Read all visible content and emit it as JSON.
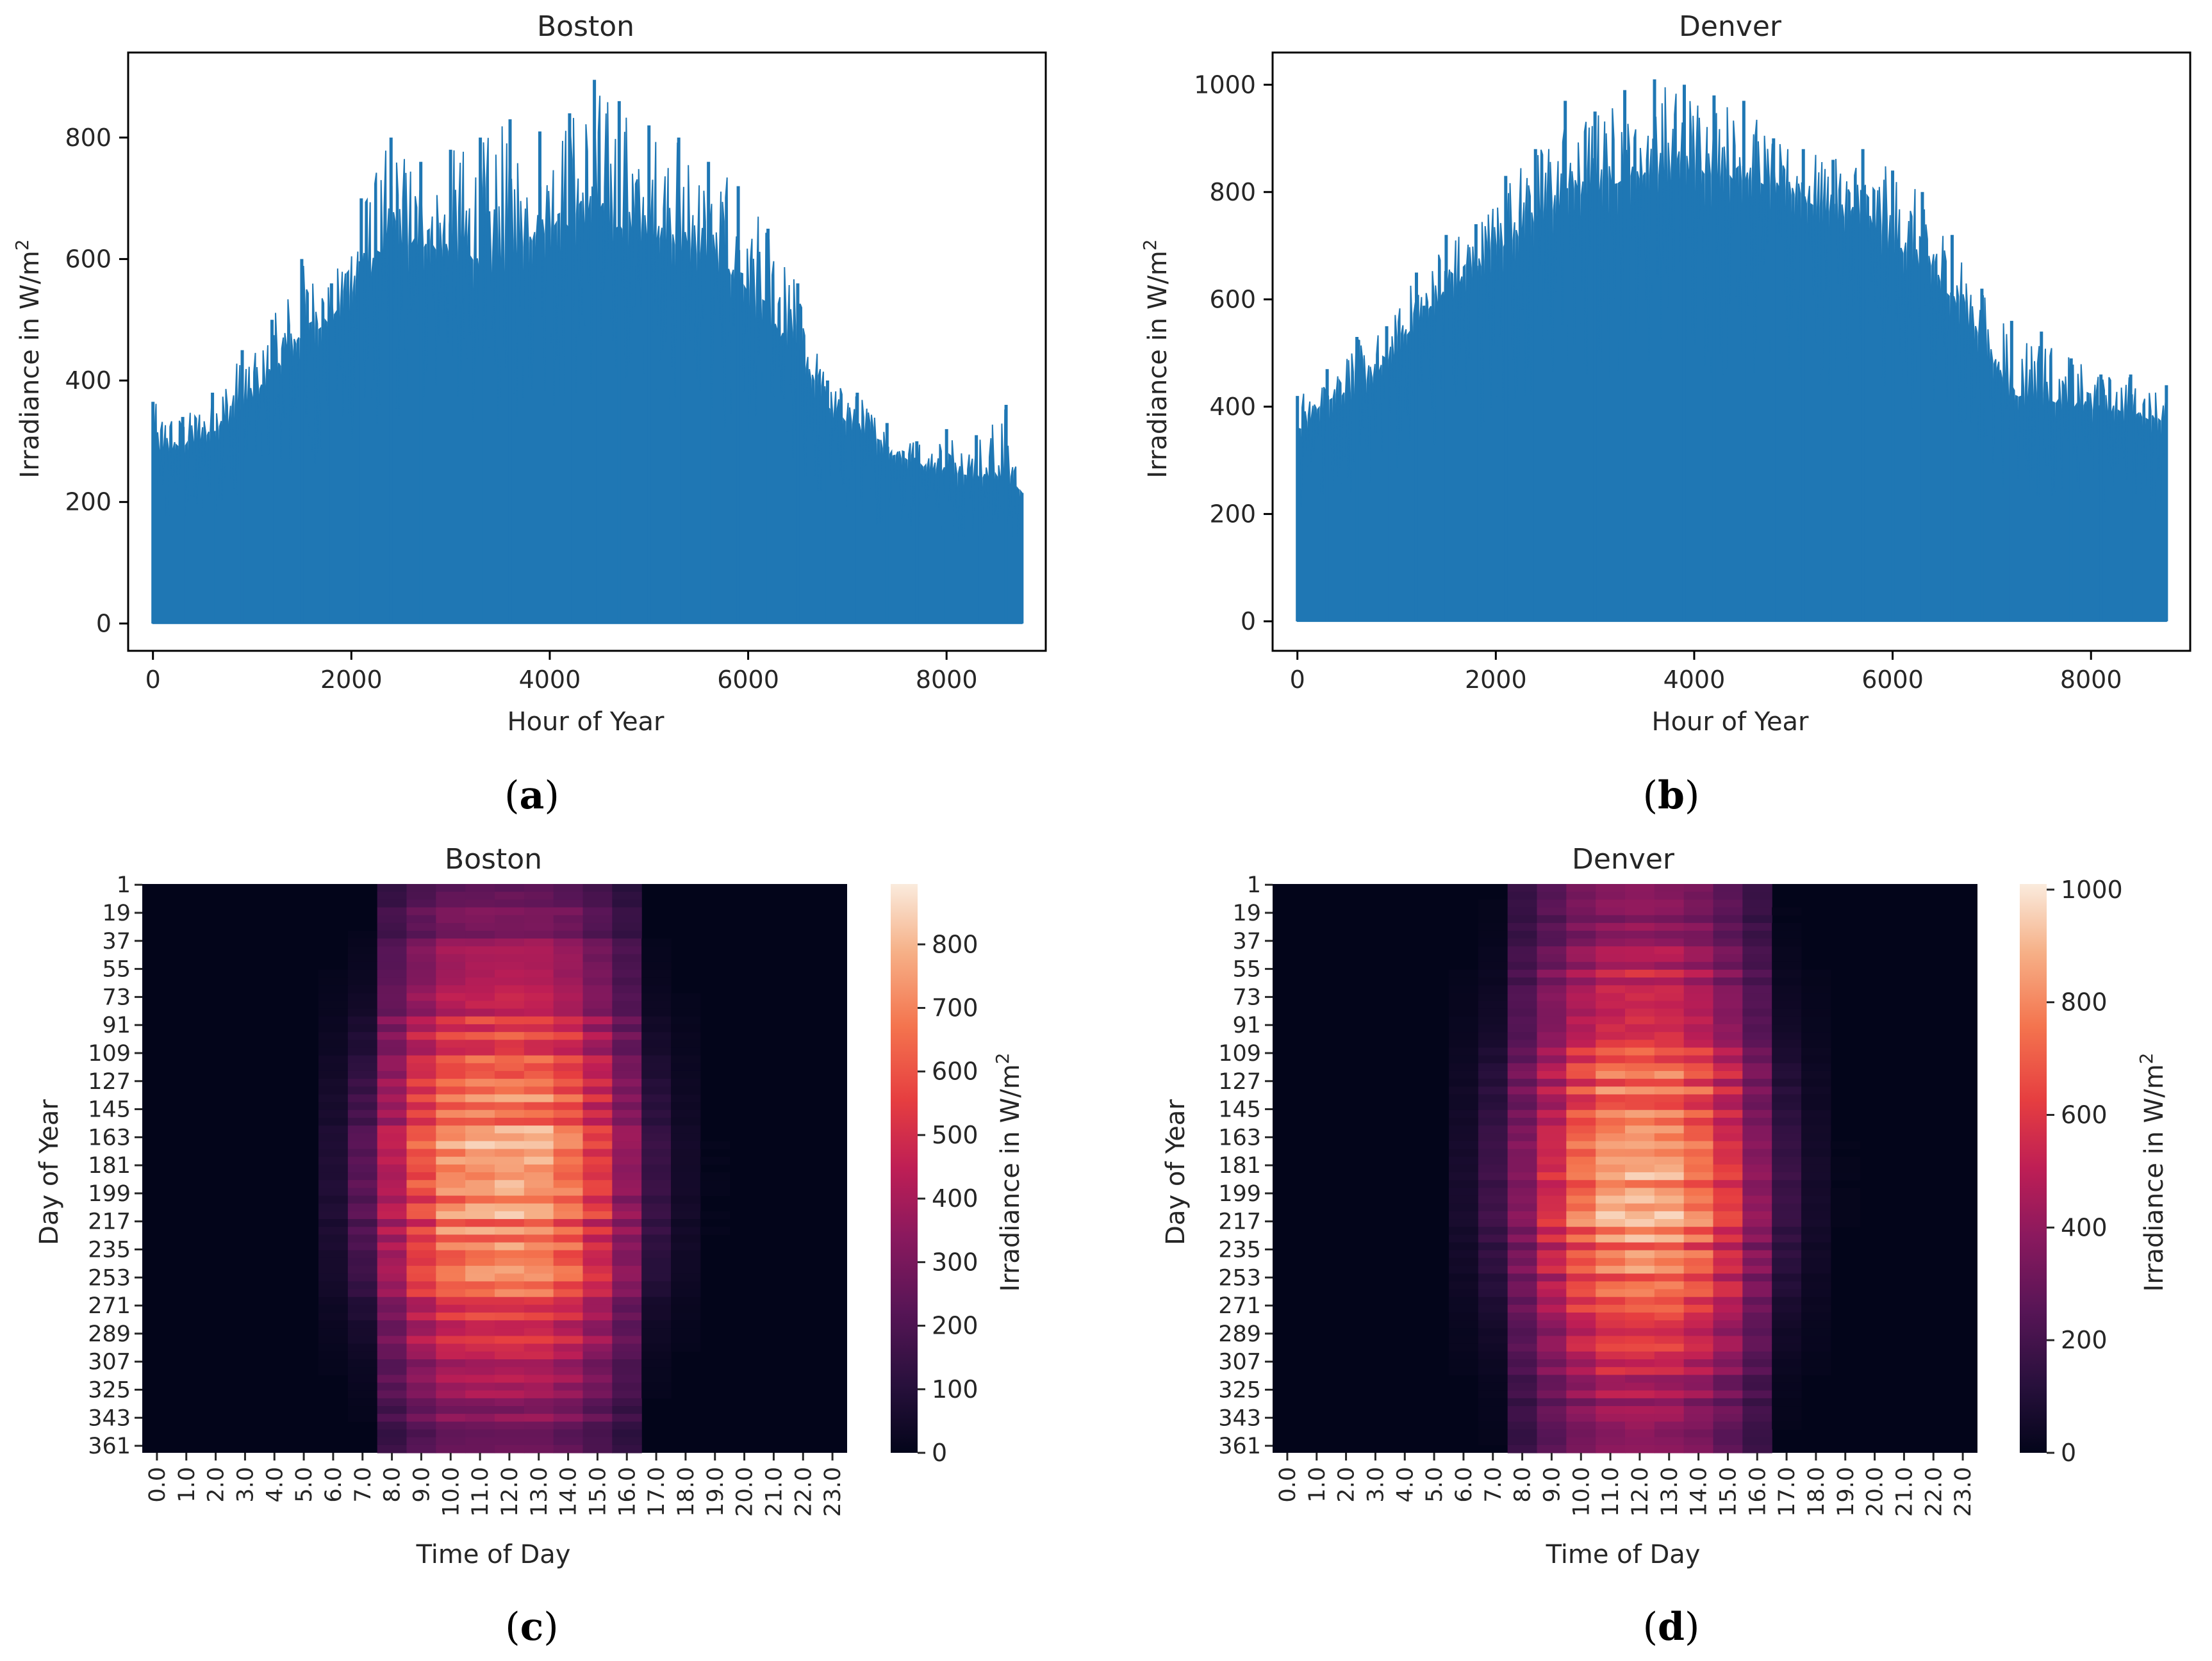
{
  "panel_labels": [
    {
      "open": "(",
      "letter": "a",
      "close": ")"
    },
    {
      "open": "(",
      "letter": "b",
      "close": ")"
    },
    {
      "open": "(",
      "letter": "c",
      "close": ")"
    },
    {
      "open": "(",
      "letter": "d",
      "close": ")"
    }
  ],
  "colors": {
    "series": "#1f77b4",
    "text": "#262626",
    "axis": "#000000"
  },
  "chart_data": [
    {
      "type": "area",
      "title": "Boston",
      "xlabel": "Hour of Year",
      "ylabel_text": "Irradiance in W/m",
      "ylabel_sup": "2",
      "xlim": [
        -250,
        9000
      ],
      "ylim": [
        -45,
        940
      ],
      "xticks": [
        0,
        2000,
        4000,
        6000,
        8000
      ],
      "yticks": [
        0,
        200,
        400,
        600,
        800
      ],
      "grid": false,
      "legend": "none",
      "series": [
        {
          "x": [
            0,
            300,
            600,
            900,
            1200,
            1500,
            1800,
            2100,
            2400,
            2700,
            3000,
            3300,
            3600,
            3900,
            4200,
            4450,
            4700,
            5000,
            5300,
            5600,
            5900,
            6200,
            6500,
            6800,
            7100,
            7400,
            7700,
            8000,
            8300,
            8600,
            8760
          ],
          "peak": [
            365,
            340,
            380,
            450,
            500,
            600,
            560,
            700,
            800,
            760,
            780,
            800,
            830,
            810,
            840,
            895,
            860,
            820,
            800,
            760,
            720,
            650,
            560,
            400,
            380,
            330,
            300,
            320,
            310,
            360,
            215
          ],
          "envelope": [
            280,
            290,
            310,
            350,
            410,
            460,
            500,
            560,
            610,
            620,
            610,
            580,
            600,
            640,
            650,
            660,
            650,
            640,
            620,
            600,
            560,
            490,
            440,
            350,
            320,
            280,
            260,
            250,
            240,
            240,
            215
          ]
        }
      ]
    },
    {
      "type": "area",
      "title": "Denver",
      "xlabel": "Hour of Year",
      "ylabel_text": "Irradiance in W/m",
      "ylabel_sup": "2",
      "xlim": [
        -250,
        9000
      ],
      "ylim": [
        -55,
        1060
      ],
      "xticks": [
        0,
        2000,
        4000,
        6000,
        8000
      ],
      "yticks": [
        0,
        200,
        400,
        600,
        800,
        1000
      ],
      "grid": false,
      "legend": "none",
      "series": [
        {
          "x": [
            0,
            300,
            600,
            900,
            1200,
            1500,
            1800,
            2100,
            2400,
            2700,
            3000,
            3300,
            3600,
            3900,
            4200,
            4500,
            4800,
            5100,
            5400,
            5700,
            6000,
            6300,
            6600,
            6900,
            7200,
            7500,
            7800,
            8100,
            8400,
            8760
          ],
          "peak": [
            420,
            470,
            530,
            550,
            650,
            720,
            740,
            830,
            880,
            970,
            950,
            990,
            1010,
            1000,
            980,
            970,
            900,
            880,
            860,
            880,
            840,
            800,
            720,
            620,
            560,
            540,
            490,
            460,
            460,
            440
          ],
          "envelope": [
            350,
            410,
            430,
            470,
            560,
            610,
            650,
            700,
            740,
            780,
            800,
            820,
            830,
            840,
            830,
            820,
            810,
            780,
            760,
            740,
            700,
            660,
            600,
            520,
            420,
            410,
            400,
            390,
            390,
            360
          ]
        }
      ]
    },
    {
      "type": "heatmap",
      "title": "Boston",
      "xlabel": "Time of Day",
      "ylabel": "Day of Year",
      "colorbar_label_text": "Irradiance in W/m",
      "colorbar_label_sup": "2",
      "colorbar_ticks": [
        0,
        100,
        200,
        300,
        400,
        500,
        600,
        700,
        800
      ],
      "vmin": 0,
      "vmax": 895,
      "x_tick_labels": [
        "0.0",
        "1.0",
        "2.0",
        "3.0",
        "4.0",
        "5.0",
        "6.0",
        "7.0",
        "8.0",
        "9.0",
        "10.0",
        "11.0",
        "12.0",
        "13.0",
        "14.0",
        "15.0",
        "16.0",
        "17.0",
        "18.0",
        "19.0",
        "20.0",
        "21.0",
        "22.0",
        "23.0"
      ],
      "y_tick_labels": [
        "1",
        "19",
        "37",
        "55",
        "73",
        "91",
        "109",
        "127",
        "145",
        "163",
        "181",
        "199",
        "217",
        "235",
        "253",
        "271",
        "289",
        "307",
        "325",
        "343",
        "361"
      ],
      "days": 365,
      "hour_peak_profile": [
        0,
        0,
        0,
        0,
        0,
        0,
        100,
        280,
        500,
        700,
        840,
        880,
        895,
        880,
        800,
        630,
        420,
        180,
        60,
        10,
        0,
        0,
        0,
        0
      ],
      "seasonal_factor": [
        0.35,
        0.45,
        0.58,
        0.72,
        0.84,
        0.93,
        0.98,
        1.0,
        0.97,
        0.88,
        0.74,
        0.58,
        0.45,
        0.36
      ]
    },
    {
      "type": "heatmap",
      "title": "Denver",
      "xlabel": "Time of Day",
      "ylabel": "Day of Year",
      "colorbar_label_text": "Irradiance in W/m",
      "colorbar_label_sup": "2",
      "colorbar_ticks": [
        0,
        200,
        400,
        600,
        800,
        1000
      ],
      "vmin": 0,
      "vmax": 1010,
      "x_tick_labels": [
        "0.0",
        "1.0",
        "2.0",
        "3.0",
        "4.0",
        "5.0",
        "6.0",
        "7.0",
        "8.0",
        "9.0",
        "10.0",
        "11.0",
        "12.0",
        "13.0",
        "14.0",
        "15.0",
        "16.0",
        "17.0",
        "18.0",
        "19.0",
        "20.0",
        "21.0",
        "22.0",
        "23.0"
      ],
      "y_tick_labels": [
        "1",
        "19",
        "37",
        "55",
        "73",
        "91",
        "109",
        "127",
        "145",
        "163",
        "181",
        "199",
        "217",
        "235",
        "253",
        "271",
        "289",
        "307",
        "325",
        "343",
        "361"
      ],
      "days": 365,
      "hour_peak_profile": [
        0,
        0,
        0,
        0,
        0,
        0,
        80,
        220,
        420,
        650,
        860,
        980,
        1010,
        990,
        880,
        700,
        450,
        200,
        70,
        10,
        0,
        0,
        0,
        0
      ],
      "seasonal_factor": [
        0.42,
        0.52,
        0.63,
        0.75,
        0.86,
        0.94,
        0.99,
        1.0,
        0.97,
        0.89,
        0.77,
        0.63,
        0.51,
        0.43
      ]
    }
  ]
}
